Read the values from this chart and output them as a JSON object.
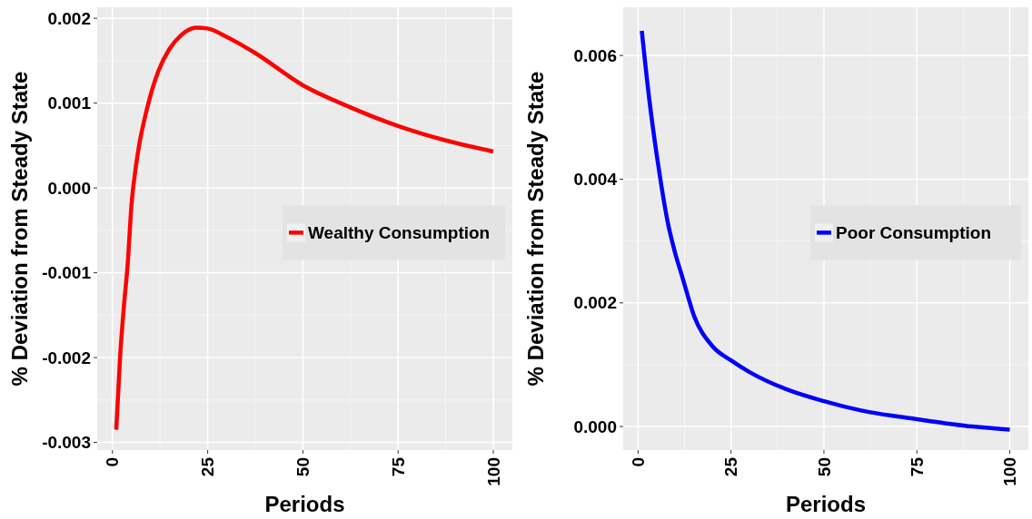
{
  "chart_data": [
    {
      "type": "line",
      "xlabel": "Periods",
      "ylabel": "% Deviation from Steady State",
      "xlim": [
        -4,
        105
      ],
      "ylim": [
        -0.00309,
        0.00213
      ],
      "xticks": [
        0,
        25,
        50,
        75,
        100
      ],
      "yticks": [
        -0.003,
        -0.002,
        -0.001,
        {
          "value": 0,
          "label": "0.000"
        },
        0.001,
        0.002
      ],
      "grid": true,
      "legend": "right",
      "series": [
        {
          "name": "Wealthy Consumption",
          "color": "#ff0000",
          "x": [
            1,
            2,
            3,
            4,
            5,
            6,
            7,
            9,
            12,
            15,
            18,
            22,
            25,
            30,
            37.5,
            50,
            62.5,
            75,
            87.5,
            100
          ],
          "values": [
            -0.00285,
            -0.002,
            -0.0014,
            -0.0009,
            -0.0002,
            0.0002,
            0.0005,
            0.00092,
            0.00137,
            0.00164,
            0.0018,
            0.00189,
            0.00188,
            0.00178,
            0.00159,
            0.00121,
            0.00095,
            0.00073,
            0.00056,
            0.00043
          ]
        }
      ]
    },
    {
      "type": "line",
      "xlabel": "Periods",
      "ylabel": "% Deviation from Steady State",
      "xlim": [
        -4,
        105
      ],
      "ylim": [
        -0.00038,
        0.00678
      ],
      "xticks": [
        0,
        25,
        50,
        75,
        100
      ],
      "yticks": [
        {
          "value": 0,
          "label": "0.000"
        },
        0.002,
        0.004,
        0.006
      ],
      "grid": true,
      "legend": "right",
      "series": [
        {
          "name": "Poor Consumption",
          "color": "#0000ff",
          "x": [
            1,
            3,
            5,
            6,
            8,
            10,
            12,
            15,
            20,
            25,
            30,
            40,
            50,
            60,
            75,
            90,
            100
          ],
          "values": [
            0.0064,
            0.0053,
            0.0044,
            0.004,
            0.0033,
            0.0028,
            0.0024,
            0.0018,
            0.0013,
            0.00107,
            0.00088,
            0.0006,
            0.00041,
            0.00026,
            0.00012,
            0.0,
            -5e-05
          ]
        }
      ]
    }
  ]
}
